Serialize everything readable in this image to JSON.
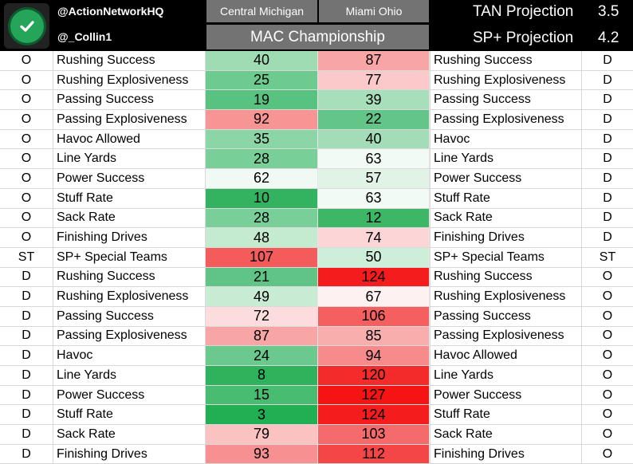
{
  "header": {
    "logo_icon": "checkmark-icon",
    "handle_primary": "@ActionNetworkHQ",
    "handle_secondary": "@_Collin1",
    "team_left": "Central Michigan",
    "team_right": "Miami Ohio",
    "game_title": "MAC Championship",
    "projections": [
      {
        "label": "TAN Projection",
        "value": "3.5"
      },
      {
        "label": "SP+ Projection",
        "value": "4.2"
      }
    ]
  },
  "rows": [
    {
      "lcode": "O",
      "lstat": "Rushing Success",
      "lval": "40",
      "lcolor": "#9fdcb4",
      "rval": "87",
      "rcolor": "#f8a5a5",
      "rstat": "Rushing Success",
      "rcode": "D"
    },
    {
      "lcode": "O",
      "lstat": "Rushing Explosiveness",
      "lval": "25",
      "lcolor": "#6ecb90",
      "rval": "77",
      "rcolor": "#fbc9c9",
      "rstat": "Rushing Explosiveness",
      "rcode": "D"
    },
    {
      "lcode": "O",
      "lstat": "Passing Success",
      "lval": "19",
      "lcolor": "#58c280",
      "rval": "39",
      "rcolor": "#a6dfba",
      "rstat": "Passing Success",
      "rcode": "D"
    },
    {
      "lcode": "O",
      "lstat": "Passing Explosiveness",
      "lval": "92",
      "lcolor": "#f79494",
      "rval": "22",
      "rcolor": "#63c688",
      "rstat": "Passing Explosiveness",
      "rcode": "D"
    },
    {
      "lcode": "O",
      "lstat": "Havoc Allowed",
      "lval": "35",
      "lcolor": "#8bd5a6",
      "rval": "40",
      "rcolor": "#a3ddb8",
      "rstat": "Havoc",
      "rcode": "D"
    },
    {
      "lcode": "O",
      "lstat": "Line Yards",
      "lval": "28",
      "lcolor": "#79cf98",
      "rval": "63",
      "rcolor": "#f2faf5",
      "rstat": "Line Yards",
      "rcode": "D"
    },
    {
      "lcode": "O",
      "lstat": "Power Success",
      "lval": "62",
      "lcolor": "#f0f9f3",
      "rval": "57",
      "rcolor": "#e0f3e6",
      "rstat": "Power Success",
      "rcode": "D"
    },
    {
      "lcode": "O",
      "lstat": "Stuff Rate",
      "lval": "10",
      "lcolor": "#33b35f",
      "rval": "63",
      "rcolor": "#f2faf5",
      "rstat": "Stuff Rate",
      "rcode": "D"
    },
    {
      "lcode": "O",
      "lstat": "Sack Rate",
      "lval": "28",
      "lcolor": "#79cf98",
      "rval": "12",
      "rcolor": "#3db766",
      "rstat": "Sack Rate",
      "rcode": "D"
    },
    {
      "lcode": "O",
      "lstat": "Finishing Drives",
      "lval": "48",
      "lcolor": "#c4eacf",
      "rval": "74",
      "rcolor": "#fcd6d6",
      "rstat": "Finishing Drives",
      "rcode": "D"
    },
    {
      "lcode": "ST",
      "lstat": "SP+ Special Teams",
      "lval": "107",
      "lcolor": "#f45b5b",
      "rval": "50",
      "rcolor": "#cdeed8",
      "rstat": "SP+ Special Teams",
      "rcode": "ST"
    },
    {
      "lcode": "D",
      "lstat": "Rushing Success",
      "lval": "21",
      "lcolor": "#60c486",
      "rval": "124",
      "rcolor": "#f41c1c",
      "rstat": "Rushing Success",
      "rcode": "O"
    },
    {
      "lcode": "D",
      "lstat": "Rushing Explosiveness",
      "lval": "49",
      "lcolor": "#c8ebd3",
      "rval": "67",
      "rcolor": "#fdf1f1",
      "rstat": "Rushing Explosiveness",
      "rcode": "O"
    },
    {
      "lcode": "D",
      "lstat": "Passing Success",
      "lval": "72",
      "lcolor": "#fcdcdc",
      "rval": "106",
      "rcolor": "#f55f5f",
      "rstat": "Passing Success",
      "rcode": "O"
    },
    {
      "lcode": "D",
      "lstat": "Passing Explosiveness",
      "lval": "87",
      "lcolor": "#f8a5a5",
      "rval": "85",
      "rcolor": "#f9aeae",
      "rstat": "Passing Explosiveness",
      "rcode": "O"
    },
    {
      "lcode": "D",
      "lstat": "Havoc",
      "lval": "24",
      "lcolor": "#6bc98d",
      "rval": "94",
      "rcolor": "#f78b8b",
      "rstat": "Havoc Allowed",
      "rcode": "O"
    },
    {
      "lcode": "D",
      "lstat": "Line Yards",
      "lval": "8",
      "lcolor": "#2eb25c",
      "rval": "120",
      "rcolor": "#f42b2b",
      "rstat": "Line Yards",
      "rcode": "O"
    },
    {
      "lcode": "D",
      "lstat": "Power Success",
      "lval": "15",
      "lcolor": "#48bc71",
      "rval": "127",
      "rcolor": "#f41414",
      "rstat": "Power Success",
      "rcode": "O"
    },
    {
      "lcode": "D",
      "lstat": "Stuff Rate",
      "lval": "3",
      "lcolor": "#22ae52",
      "rval": "124",
      "rcolor": "#f41c1c",
      "rstat": "Stuff Rate",
      "rcode": "O"
    },
    {
      "lcode": "D",
      "lstat": "Sack Rate",
      "lval": "79",
      "lcolor": "#fbc2c2",
      "rval": "103",
      "rcolor": "#f56a6a",
      "rstat": "Sack Rate",
      "rcode": "O"
    },
    {
      "lcode": "D",
      "lstat": "Finishing Drives",
      "lval": "93",
      "lcolor": "#f79090",
      "rval": "112",
      "rcolor": "#f44646",
      "rstat": "Finishing Drives",
      "rcode": "O"
    }
  ]
}
